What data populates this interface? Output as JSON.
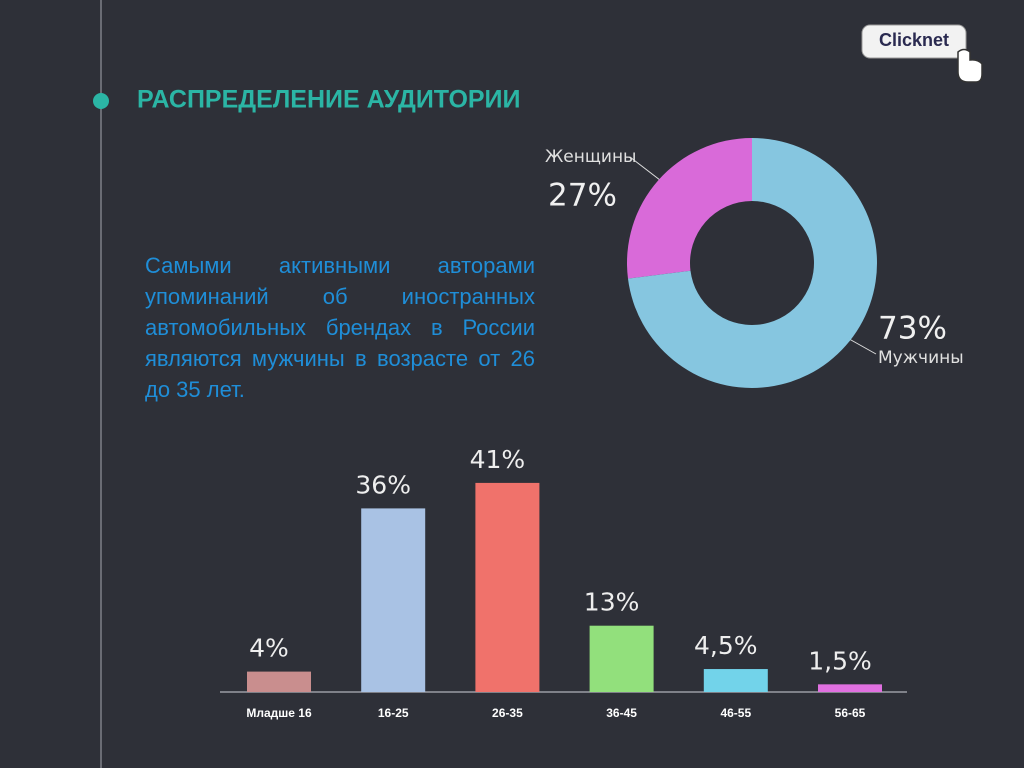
{
  "title": "РАСПРЕДЕЛЕНИЕ АУДИТОРИИ",
  "text": "Самыми активными авторами упоминаний об иностранных автомобильных брендах в России являются мужчины в возрасте от 26 до 35 лет.",
  "logo": "Clicknet",
  "chart_data": [
    {
      "type": "pie",
      "categories": [
        "Женщины",
        "Мужчины"
      ],
      "values": [
        27,
        73
      ],
      "value_labels": [
        "27%",
        "73%"
      ],
      "colors": [
        "#d96ad9",
        "#86c6e0"
      ]
    },
    {
      "type": "bar",
      "categories": [
        "Младше 16",
        "16-25",
        "26-35",
        "36-45",
        "46-55",
        "56-65"
      ],
      "values": [
        4,
        36,
        41,
        13,
        4.5,
        1.5
      ],
      "value_labels": [
        "4%",
        "36%",
        "41%",
        "13%",
        "4,5%",
        "1,5%"
      ],
      "colors": [
        "#c98e8e",
        "#a9c2e4",
        "#f0726b",
        "#92e07c",
        "#72d3ea",
        "#e070e0"
      ]
    }
  ]
}
